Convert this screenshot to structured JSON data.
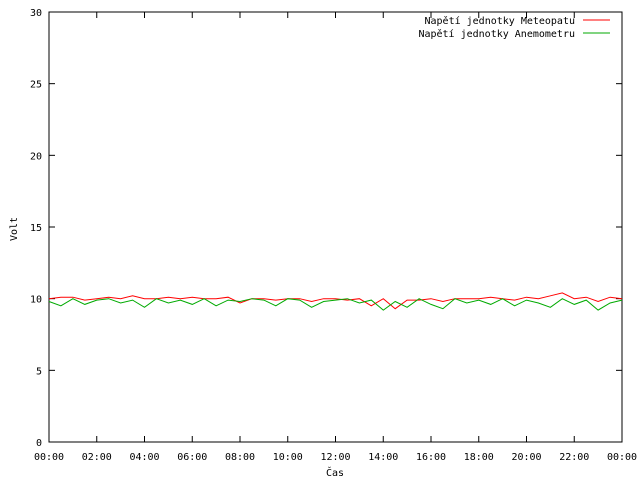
{
  "chart_data": {
    "type": "line",
    "title": "",
    "xlabel": "Čas",
    "ylabel": "Volt",
    "ylim": [
      0,
      30
    ],
    "yticks": [
      "0",
      "5",
      "10",
      "15",
      "20",
      "25",
      "30"
    ],
    "xlim": [
      0,
      24
    ],
    "xticks": [
      "00:00",
      "02:00",
      "04:00",
      "06:00",
      "08:00",
      "10:00",
      "12:00",
      "14:00",
      "16:00",
      "18:00",
      "20:00",
      "22:00",
      "00:00"
    ],
    "legend_position": "top-right",
    "series": [
      {
        "name": "Napětí jednotky Meteopatu",
        "color": "#ff0000",
        "x": [
          0,
          0.5,
          1,
          1.5,
          2,
          2.5,
          3,
          3.5,
          4,
          4.5,
          5,
          5.5,
          6,
          6.5,
          7,
          7.5,
          8,
          8.5,
          9,
          9.5,
          10,
          10.5,
          11,
          11.5,
          12,
          12.5,
          13,
          13.5,
          14,
          14.5,
          15,
          15.5,
          16,
          16.5,
          17,
          17.5,
          18,
          18.5,
          19,
          19.5,
          20,
          20.5,
          21,
          21.5,
          22,
          22.5,
          23,
          23.5,
          24
        ],
        "values": [
          10.0,
          10.1,
          10.1,
          9.9,
          10.0,
          10.1,
          10.0,
          10.2,
          10.0,
          10.0,
          10.1,
          10.0,
          10.1,
          10.0,
          10.0,
          10.1,
          9.7,
          10.0,
          10.0,
          9.9,
          10.0,
          10.0,
          9.8,
          10.0,
          10.0,
          9.9,
          10.0,
          9.5,
          10.0,
          9.3,
          9.9,
          9.9,
          10.0,
          9.8,
          10.0,
          10.0,
          10.0,
          10.1,
          10.0,
          9.9,
          10.1,
          10.0,
          10.2,
          10.4,
          10.0,
          10.1,
          9.8,
          10.1,
          10.0
        ]
      },
      {
        "name": "Napětí jednotky Anemometru",
        "color": "#00aa00",
        "x": [
          0,
          0.5,
          1,
          1.5,
          2,
          2.5,
          3,
          3.5,
          4,
          4.5,
          5,
          5.5,
          6,
          6.5,
          7,
          7.5,
          8,
          8.5,
          9,
          9.5,
          10,
          10.5,
          11,
          11.5,
          12,
          12.5,
          13,
          13.5,
          14,
          14.5,
          15,
          15.5,
          16,
          16.5,
          17,
          17.5,
          18,
          18.5,
          19,
          19.5,
          20,
          20.5,
          21,
          21.5,
          22,
          22.5,
          23,
          23.5,
          24
        ],
        "values": [
          9.8,
          9.5,
          10.0,
          9.6,
          9.9,
          10.0,
          9.7,
          9.9,
          9.4,
          10.0,
          9.7,
          9.9,
          9.6,
          10.0,
          9.5,
          9.9,
          9.8,
          10.0,
          9.9,
          9.5,
          10.0,
          9.9,
          9.4,
          9.8,
          9.9,
          10.0,
          9.7,
          9.9,
          9.2,
          9.8,
          9.4,
          10.0,
          9.6,
          9.3,
          10.0,
          9.7,
          9.9,
          9.6,
          10.0,
          9.5,
          9.9,
          9.7,
          9.4,
          10.0,
          9.6,
          9.9,
          9.2,
          9.7,
          9.9
        ]
      }
    ]
  }
}
